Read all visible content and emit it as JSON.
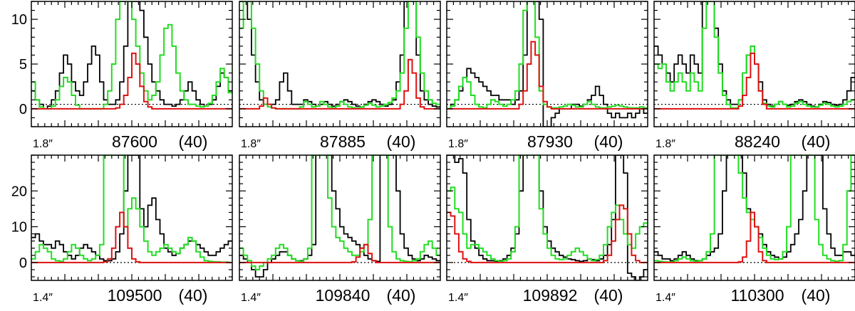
{
  "chart_data": {
    "type": "line",
    "layout": {
      "rows": 2,
      "cols": 4
    },
    "colors": {
      "observed": "#000000",
      "model_all": "#22dd22",
      "model_species": "#dd1111",
      "baseline": "#000000"
    },
    "rows": [
      {
        "ylim": [
          -2,
          12
        ],
        "yticks": [
          0,
          5,
          10
        ]
      },
      {
        "ylim": [
          -5,
          30
        ],
        "yticks": [
          0,
          10,
          20
        ]
      }
    ],
    "panels": [
      {
        "beam": "1.8″",
        "freq": "87600",
        "tag": "(40)",
        "baseline": 0.5,
        "observed": [
          2,
          1,
          0.5,
          0,
          0.3,
          1,
          2,
          4,
          6,
          5,
          3,
          2,
          1.5,
          3,
          5,
          7,
          6,
          3,
          1,
          0.5,
          0.5,
          1,
          3,
          7,
          12,
          12,
          12,
          11,
          8,
          5,
          3,
          2,
          1,
          0.5,
          0.5,
          0.3,
          0.5,
          1,
          2,
          3,
          2,
          1,
          0.5,
          0.3,
          0.5,
          1,
          2.5,
          4,
          3.5,
          2
        ],
        "model_all": [
          3,
          1,
          0.2,
          0,
          0,
          0.3,
          1,
          2.5,
          3.5,
          3,
          1.5,
          0.4,
          0,
          0,
          0,
          0,
          0,
          0,
          0.5,
          2,
          5,
          10,
          12,
          12,
          12,
          10,
          7,
          4,
          2,
          1,
          1.5,
          3,
          6,
          9,
          9.4,
          7,
          4,
          2,
          1,
          0.5,
          0.5,
          0.3,
          0.2,
          0.3,
          0.6,
          1.5,
          3,
          4.5,
          3.5,
          1.8
        ],
        "model_species": [
          0,
          0,
          0,
          0,
          0,
          0,
          0,
          0,
          0,
          0,
          0,
          0,
          0,
          0,
          0,
          0,
          0,
          0,
          0,
          0,
          0,
          0.1,
          0.5,
          1.5,
          3.5,
          6.2,
          5,
          2.5,
          0.8,
          0.2,
          0,
          0,
          0,
          0,
          0,
          0,
          0,
          0,
          0,
          0,
          0,
          0,
          0,
          0,
          0,
          0,
          0,
          0,
          0,
          0
        ]
      },
      {
        "beam": "1.8″",
        "freq": "87885",
        "tag": "(40)",
        "baseline": 0.5,
        "observed": [
          12,
          12,
          10,
          6,
          3,
          1,
          0.5,
          0.5,
          0.5,
          1,
          3,
          4,
          2,
          0.5,
          0.5,
          0.5,
          1,
          0.8,
          0.5,
          0.3,
          0.5,
          0.8,
          0.5,
          0.3,
          0.5,
          0.8,
          1,
          0.8,
          0.5,
          0.3,
          0.2,
          0.5,
          0.8,
          1,
          0.8,
          0.5,
          0.3,
          0.5,
          1,
          3,
          6,
          12,
          12,
          12,
          6,
          2,
          1,
          0.5,
          0.3,
          0.2
        ],
        "model_all": [
          9,
          12,
          12,
          9,
          5,
          2,
          0.5,
          0.2,
          0.1,
          0,
          0,
          0,
          0,
          0,
          0,
          0.2,
          0.8,
          0.5,
          0.2,
          0.3,
          0.8,
          0.5,
          0.2,
          0.1,
          0.3,
          0.8,
          0.5,
          0.2,
          0.1,
          0.1,
          0.2,
          0.4,
          0.6,
          0.4,
          0.2,
          0.3,
          0.5,
          0.7,
          1.2,
          2,
          4,
          9,
          12,
          12,
          8,
          4,
          2,
          1,
          0.6,
          0.5
        ],
        "model_species": [
          0,
          0,
          0,
          0,
          0,
          0.3,
          1.2,
          0.5,
          0.1,
          0,
          0,
          0,
          0,
          0,
          0,
          0,
          0,
          0,
          0,
          0,
          0,
          0,
          0,
          0,
          0,
          0,
          0,
          0,
          0,
          0,
          0,
          0,
          0,
          0,
          0,
          0,
          0,
          0,
          0,
          0,
          0.5,
          2,
          5.5,
          4,
          1.2,
          0.2,
          0,
          0,
          0,
          0
        ]
      },
      {
        "beam": "1.8″",
        "freq": "87930",
        "tag": "(40)",
        "baseline": 0.5,
        "observed": [
          0,
          0.5,
          1,
          2,
          3.5,
          4.5,
          4,
          3.5,
          3,
          2.5,
          2,
          1.5,
          1.5,
          1,
          1,
          1,
          0.5,
          1,
          2,
          6,
          12,
          12,
          12,
          10,
          -2,
          -2,
          -1,
          -0.5,
          0,
          0,
          0,
          0.5,
          0.5,
          0.3,
          0.5,
          1,
          1.5,
          2.5,
          1.5,
          0.5,
          -0.5,
          -1,
          -0.5,
          -1,
          -1,
          -0.5,
          -1,
          -0.5,
          0,
          -0.5
        ],
        "model_all": [
          0,
          0.3,
          1,
          2.5,
          3.5,
          3,
          1.5,
          0.5,
          0.2,
          0.1,
          0.5,
          1,
          0.8,
          0.5,
          0.3,
          0.5,
          1,
          2,
          5,
          11,
          12,
          12,
          8,
          2,
          0.5,
          0.2,
          0.1,
          0.1,
          0.2,
          0.3,
          0.5,
          0.4,
          0.2,
          0.2,
          0.5,
          0.8,
          0.5,
          0.2,
          0.1,
          0.1,
          0.2,
          0.3,
          0.4,
          0.3,
          0.2,
          0.1,
          0.1,
          0.1,
          0.2,
          0.1
        ],
        "model_species": [
          0,
          0,
          0,
          0,
          0,
          0,
          0,
          0,
          0,
          0,
          0,
          0,
          0,
          0,
          0,
          0,
          0,
          0,
          0.5,
          2,
          5,
          7.5,
          6,
          2.5,
          0.8,
          0.2,
          0,
          0,
          0,
          0,
          0,
          0,
          0,
          0,
          0,
          0,
          0,
          0,
          0,
          0,
          0,
          0,
          0,
          0,
          0,
          0,
          0,
          0,
          0,
          0
        ]
      },
      {
        "beam": "1.8″",
        "freq": "88240",
        "tag": "(40)",
        "baseline": 0.5,
        "observed": [
          7,
          6,
          5,
          4,
          3,
          5,
          6,
          5,
          4,
          6,
          5,
          4,
          12,
          12,
          12,
          9,
          5,
          2,
          1,
          0.5,
          0.5,
          1,
          4,
          6,
          7,
          5,
          3,
          1,
          0.5,
          0.3,
          0.5,
          0.8,
          0.5,
          0.4,
          0.5,
          0.8,
          1,
          0.8,
          0.5,
          0.3,
          0.2,
          0.5,
          0.8,
          0.7,
          0.5,
          0.4,
          0.5,
          1,
          2,
          3.5
        ],
        "model_all": [
          5,
          4.5,
          5,
          3,
          2,
          3,
          4,
          3,
          2,
          4,
          3,
          2,
          9,
          12,
          12,
          8,
          4,
          1.5,
          0.5,
          0.1,
          0.1,
          1,
          4,
          6,
          7,
          5,
          2,
          0.6,
          0.3,
          0.2,
          0.5,
          0.8,
          0.5,
          0.2,
          0.3,
          0.6,
          0.8,
          0.5,
          0.3,
          0.2,
          0.2,
          0.4,
          0.6,
          0.5,
          0.3,
          0.2,
          0.3,
          0.5,
          0.8,
          1
        ],
        "model_species": [
          0,
          0,
          0,
          0,
          0,
          0,
          0,
          0,
          0,
          0,
          0,
          0,
          0,
          0,
          0,
          0,
          0,
          0,
          0,
          0,
          0,
          0.3,
          1.5,
          3.5,
          6.2,
          5,
          2,
          0.5,
          0,
          0,
          0,
          0,
          0,
          0,
          0,
          0,
          0,
          0,
          0,
          0,
          0,
          0,
          0,
          0,
          0,
          0,
          0,
          0,
          0,
          0
        ]
      },
      {
        "beam": "1.4″",
        "freq": "109500",
        "tag": "(40)",
        "baseline": 0,
        "observed": [
          7,
          8,
          6,
          5,
          5,
          4,
          6,
          5,
          3,
          2,
          1,
          2,
          4,
          5,
          4,
          3,
          2,
          1,
          0.5,
          0.5,
          1,
          3,
          8,
          20,
          30,
          30,
          30,
          15,
          10,
          16,
          18,
          12,
          8,
          4,
          3,
          2,
          2.5,
          4,
          5,
          6,
          6,
          5,
          4,
          3,
          2,
          2,
          3,
          4,
          5,
          6
        ],
        "model_all": [
          1,
          3,
          5,
          4,
          3,
          1,
          0.5,
          0.3,
          1,
          3,
          5,
          4,
          2,
          1,
          0.5,
          1,
          2,
          5,
          30,
          30,
          30,
          30,
          30,
          10,
          15,
          18,
          15,
          10,
          6,
          3,
          2,
          3,
          4,
          5,
          4,
          3,
          2.5,
          4,
          5,
          7,
          6,
          3,
          1.5,
          0.5,
          0.3,
          0.2,
          0.2,
          0.1,
          0.1,
          0
        ],
        "model_species": [
          0,
          0,
          0,
          0,
          0,
          0,
          0,
          0,
          0,
          0,
          0,
          0,
          0,
          0,
          0,
          0,
          0,
          0,
          0.2,
          1,
          4,
          10,
          14,
          10,
          4,
          1,
          0.2,
          0,
          0,
          0,
          0,
          0,
          0,
          0,
          0,
          0,
          0,
          0,
          0,
          0,
          0,
          0,
          0,
          0,
          0,
          0,
          0,
          0,
          0,
          0
        ]
      },
      {
        "beam": "1.4″",
        "freq": "109840",
        "tag": "(40)",
        "baseline": 0,
        "observed": [
          2,
          1,
          0,
          -2,
          -4,
          -4,
          -2,
          0,
          1,
          2,
          3,
          3,
          2,
          1,
          0.5,
          0.5,
          1,
          2,
          5,
          30,
          30,
          30,
          30,
          20,
          15,
          10,
          8,
          7,
          6,
          5,
          4,
          2,
          1,
          0.5,
          0.3,
          30,
          30,
          30,
          30,
          20,
          8,
          4,
          2,
          1,
          0.5,
          1,
          2,
          1.5,
          1,
          0.5
        ],
        "model_all": [
          4,
          2,
          0.5,
          -1,
          -2,
          -1,
          0,
          1,
          2,
          4,
          5,
          4,
          2,
          1,
          0.5,
          0.3,
          1,
          4,
          30,
          30,
          30,
          30,
          18,
          10,
          7,
          6,
          4,
          3,
          2,
          2,
          3,
          5,
          12,
          30,
          30,
          30,
          30,
          10,
          3,
          1,
          0.5,
          0.3,
          0.2,
          0.5,
          1,
          3,
          5,
          6,
          4,
          2
        ],
        "model_species": [
          0,
          0,
          0,
          0,
          0,
          0,
          0,
          0,
          0,
          0,
          0,
          0,
          0,
          0,
          0,
          0,
          0,
          0,
          0,
          0,
          0,
          0,
          0,
          0,
          0,
          0,
          0,
          0,
          0.2,
          1.5,
          4,
          5,
          2.5,
          0.5,
          0,
          0,
          0,
          0,
          0,
          0,
          0,
          0,
          0,
          0,
          0,
          0,
          0,
          0,
          0,
          0
        ]
      },
      {
        "beam": "1.4″",
        "freq": "109892",
        "tag": "(40)",
        "baseline": 0,
        "observed": [
          30,
          30,
          28,
          29,
          25,
          12,
          6,
          4,
          2,
          1,
          0.5,
          0.5,
          0.3,
          0.5,
          1,
          2,
          4,
          8,
          20,
          30,
          30,
          30,
          30,
          20,
          10,
          6,
          4,
          3,
          2,
          1.5,
          1,
          0.8,
          0.5,
          0.3,
          0.5,
          1,
          0.8,
          0.5,
          1,
          2,
          5,
          12,
          30,
          30,
          25,
          -3,
          -4,
          -5,
          -4,
          -2
        ],
        "model_all": [
          20,
          21,
          15,
          14,
          8,
          4,
          5,
          5,
          4,
          3,
          2,
          1,
          0.5,
          0.3,
          0.5,
          1,
          3,
          10,
          30,
          30,
          30,
          30,
          30,
          15,
          8,
          4,
          2,
          1,
          0.8,
          1,
          2,
          3,
          4,
          3,
          2,
          1,
          0.5,
          0.8,
          2,
          5,
          10,
          14,
          16,
          12,
          8,
          5,
          4,
          8,
          10,
          11
        ],
        "model_species": [
          14,
          13,
          8,
          3,
          1,
          0.3,
          0,
          0,
          0,
          0,
          0,
          0,
          0,
          0,
          0,
          0,
          0,
          0,
          0,
          0,
          0,
          0,
          0,
          0,
          0,
          0,
          0,
          0,
          0,
          0,
          0,
          0,
          0,
          0,
          0,
          0,
          0,
          0,
          0,
          0.5,
          2,
          6,
          12,
          16,
          15,
          8,
          2,
          0.5,
          0,
          0
        ]
      },
      {
        "beam": "1.4″",
        "freq": "110300",
        "tag": "(40)",
        "baseline": 0,
        "observed": [
          3,
          2,
          1,
          1,
          0.5,
          1,
          2,
          3,
          2,
          1,
          0.5,
          0.5,
          1,
          2,
          3,
          4,
          8,
          20,
          30,
          30,
          30,
          30,
          25,
          15,
          12,
          10,
          8,
          5,
          3,
          2,
          1.5,
          1,
          1.5,
          3,
          5,
          8,
          12,
          20,
          30,
          30,
          30,
          30,
          15,
          8,
          4,
          2,
          2,
          3,
          3,
          2
        ],
        "model_all": [
          0.5,
          0.3,
          0.2,
          0.1,
          0.2,
          0.5,
          1,
          1.5,
          1,
          0.5,
          0.3,
          0.5,
          1,
          3,
          8,
          30,
          30,
          30,
          30,
          30,
          30,
          25,
          18,
          14,
          12,
          10,
          7,
          4,
          2,
          1,
          0.8,
          1,
          3,
          10,
          30,
          30,
          30,
          30,
          30,
          30,
          12,
          5,
          2,
          1,
          0.5,
          0.3,
          0.5,
          5,
          20,
          30
        ],
        "model_species": [
          0,
          0,
          0,
          0,
          0,
          0,
          0,
          0,
          0,
          0,
          0,
          0,
          0,
          0,
          0,
          0,
          0,
          0,
          0,
          0,
          0,
          0.2,
          1.5,
          6,
          14,
          10,
          3,
          0.5,
          0,
          0,
          0,
          0,
          0,
          0,
          0,
          0,
          0,
          0,
          0,
          0,
          0,
          0,
          0,
          0,
          0,
          0,
          0,
          0,
          0,
          0
        ]
      }
    ]
  }
}
